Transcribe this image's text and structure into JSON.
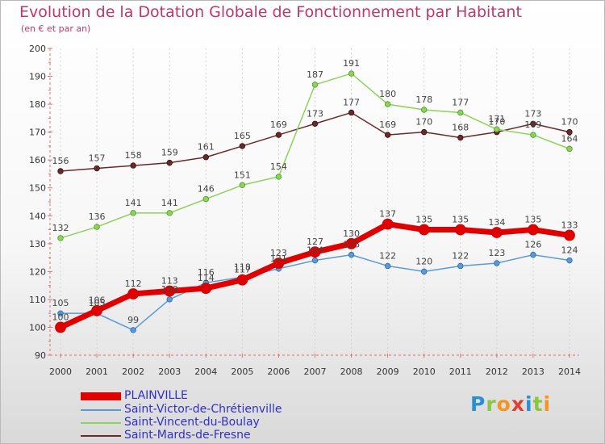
{
  "chart_data": {
    "type": "line",
    "title": "Evolution de la Dotation Globale de Fonctionnement par Habitant",
    "subtitle": "(en € et par an)",
    "categories": [
      "2000",
      "2001",
      "2002",
      "2003",
      "2004",
      "2005",
      "2006",
      "2007",
      "2008",
      "2009",
      "2010",
      "2011",
      "2012",
      "2013",
      "2014"
    ],
    "ylim": [
      90,
      200
    ],
    "yticks": [
      90,
      100,
      110,
      120,
      130,
      140,
      150,
      160,
      170,
      180,
      190,
      200
    ],
    "grid": "vertical",
    "legend_position": "bottom-left",
    "series": [
      {
        "name": "PLAINVILLE",
        "color": "#e00000",
        "values": [
          100,
          106,
          112,
          113,
          114,
          117,
          123,
          127,
          130,
          137,
          135,
          135,
          134,
          135,
          133
        ]
      },
      {
        "name": "Saint-Victor-de-Chrétienville",
        "color": "#5b9bd5",
        "values": [
          105,
          105,
          99,
          110,
          116,
          118,
          121,
          124,
          126,
          122,
          120,
          122,
          123,
          126,
          124
        ]
      },
      {
        "name": "Saint-Vincent-du-Boulay",
        "color": "#8cd35a",
        "values": [
          132,
          136,
          141,
          141,
          146,
          151,
          154,
          187,
          191,
          180,
          178,
          177,
          171,
          169,
          164
        ]
      },
      {
        "name": "Saint-Mards-de-Fresne",
        "color": "#6b2a2a",
        "values": [
          156,
          157,
          158,
          159,
          161,
          165,
          169,
          173,
          177,
          169,
          170,
          168,
          170,
          173,
          170
        ]
      }
    ]
  },
  "logo": {
    "letters": [
      "P",
      "r",
      "o",
      "x",
      "i",
      "t",
      "i"
    ]
  }
}
